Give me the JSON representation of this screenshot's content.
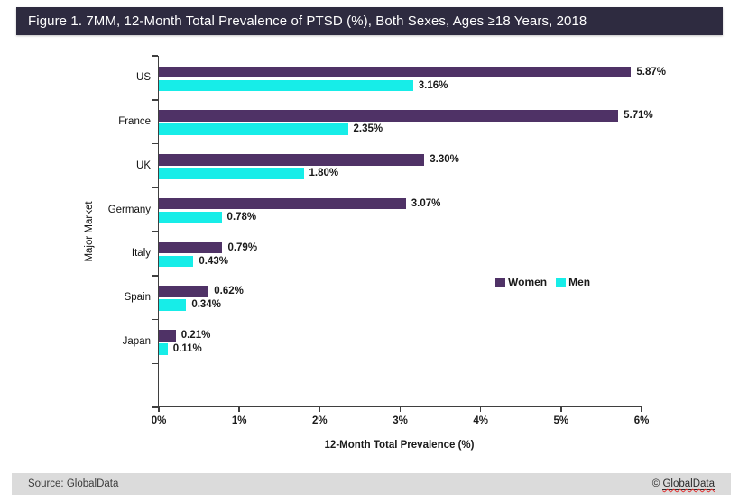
{
  "title_bar": {
    "text": "Figure 1. 7MM, 12-Month Total Prevalence of PTSD (%), Both Sexes, Ages ≥18 Years, 2018"
  },
  "chart_data": {
    "type": "bar",
    "orientation": "horizontal",
    "categories": [
      "US",
      "France",
      "UK",
      "Germany",
      "Italy",
      "Spain",
      "Japan"
    ],
    "series": [
      {
        "name": "Women",
        "color": "#4f3266",
        "values": [
          5.87,
          5.71,
          3.3,
          3.07,
          0.79,
          0.62,
          0.21
        ],
        "labels": [
          "5.87%",
          "5.71%",
          "3.30%",
          "3.07%",
          "0.79%",
          "0.62%",
          "0.21%"
        ]
      },
      {
        "name": "Men",
        "color": "#17ede8",
        "values": [
          3.16,
          2.35,
          1.8,
          0.78,
          0.43,
          0.34,
          0.11
        ],
        "labels": [
          "3.16%",
          "2.35%",
          "1.80%",
          "0.78%",
          "0.43%",
          "0.34%",
          "0.11%"
        ]
      }
    ],
    "xlabel": "12-Month Total Prevalence (%)",
    "ylabel": "Major Market",
    "xlim": [
      0,
      6
    ],
    "xticks": [
      "0%",
      "1%",
      "2%",
      "3%",
      "4%",
      "5%",
      "6%"
    ],
    "legend": {
      "entries": [
        "Women",
        "Men"
      ],
      "position": "middle-right-of-plot"
    },
    "grid": false,
    "axis_color": "#3f3f3f"
  },
  "footer": {
    "source": "Source: GlobalData",
    "copyright_symbol": "©",
    "copyright_name": "GlobalData"
  }
}
